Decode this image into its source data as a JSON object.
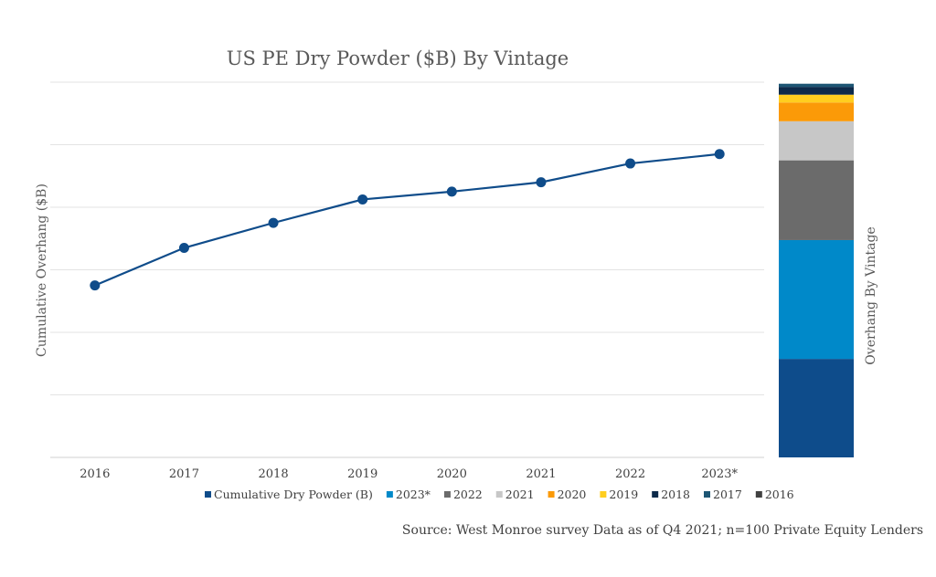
{
  "chart_data": [
    {
      "type": "line",
      "title": "US PE Dry Powder ($B) By Vintage",
      "ylabel": "Cumulative Overhang ($B)",
      "xlabel": "",
      "categories": [
        "2016",
        "2017",
        "2018",
        "2019",
        "2020",
        "2021",
        "2022",
        "2023*"
      ],
      "series": [
        {
          "name": "Cumulative Dry Powder (B)",
          "color": "#0F4C8A",
          "values": [
            55,
            67,
            75,
            82.5,
            85,
            88,
            94,
            97
          ]
        }
      ],
      "ylim": [
        0,
        120
      ],
      "grid": true,
      "y_tick_labels_shown": false
    },
    {
      "type": "bar",
      "stacked": true,
      "ylabel": "Overhang By Vintage",
      "ylim": [
        0,
        120
      ],
      "series": [
        {
          "name": "2023*",
          "color": "#0E4C8B",
          "value": 31.5
        },
        {
          "name": "2022",
          "color": "#0089C9",
          "value": 38
        },
        {
          "name": "2021",
          "color": "#6B6B6B",
          "value": 25.5
        },
        {
          "name": "2020",
          "color": "#C7C7C7",
          "value": 12.5
        },
        {
          "name": "2019",
          "color": "#FB9A08",
          "value": 6
        },
        {
          "name": "2018",
          "color": "#FFCE1F",
          "value": 2.5
        },
        {
          "name": "2017",
          "color": "#0D2A4A",
          "value": 2.5
        },
        {
          "name": "2016",
          "color": "#1D5674",
          "value": 1
        }
      ]
    }
  ],
  "legend": {
    "placement": "bottom",
    "items": [
      {
        "label": "Cumulative Dry Powder (B)",
        "color": "#0F4C8A"
      },
      {
        "label": "2023*",
        "color": "#0089C9"
      },
      {
        "label": "2022",
        "color": "#6B6B6B"
      },
      {
        "label": "2021",
        "color": "#C7C7C7"
      },
      {
        "label": "2020",
        "color": "#FB9A08"
      },
      {
        "label": "2019",
        "color": "#FFCE1F"
      },
      {
        "label": "2018",
        "color": "#0D2A4A"
      },
      {
        "label": "2017",
        "color": "#1D5674"
      },
      {
        "label": "2016",
        "color": "#404040"
      }
    ]
  },
  "source": "Source: West Monroe survey Data as of Q4 2021; n=100 Private Equity Lenders"
}
